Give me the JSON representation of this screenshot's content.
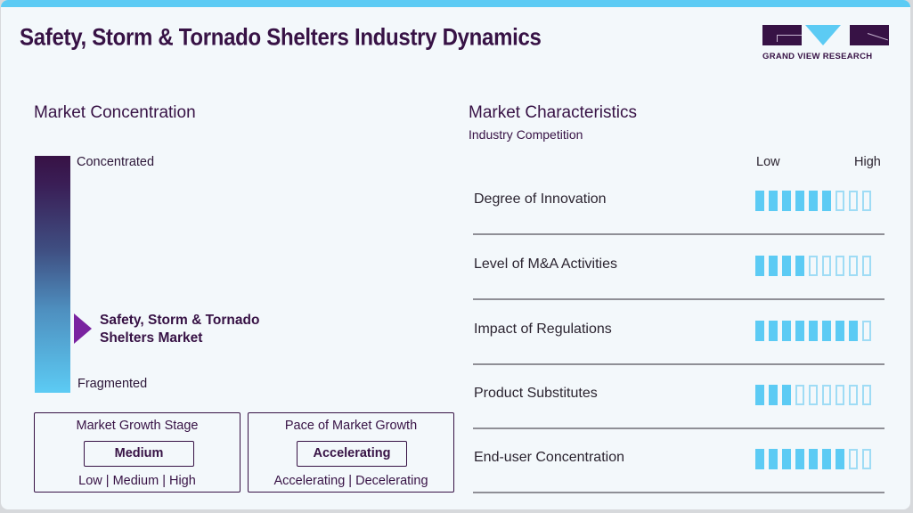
{
  "header": {
    "title": "Safety, Storm & Tornado Shelters Industry Dynamics",
    "logo_text": "GRAND VIEW RESEARCH"
  },
  "colors": {
    "accent_cyan": "#5ccbf4",
    "brand_purple": "#371245",
    "marker_purple": "#7a23a0",
    "bar_outline": "#9fdcf5"
  },
  "concentration": {
    "heading": "Market Concentration",
    "top_label": "Concentrated",
    "bottom_label": "Fragmented",
    "market_label_line1": "Safety, Storm & Tornado",
    "market_label_line2": "Shelters Market"
  },
  "growth_stage": {
    "title": "Market Growth Stage",
    "value": "Medium",
    "options": "Low  |  Medium  |  High"
  },
  "growth_pace": {
    "title": "Pace of Market Growth",
    "value": "Accelerating",
    "options": "Accelerating  |  Decelerating"
  },
  "characteristics": {
    "heading": "Market Characteristics",
    "subheading": "Industry Competition",
    "scale_low": "Low",
    "scale_high": "High",
    "max_bars": 9,
    "items": [
      {
        "label": "Degree of Innovation",
        "filled": 6
      },
      {
        "label": "Level of M&A Activities",
        "filled": 4
      },
      {
        "label": "Impact of Regulations",
        "filled": 8
      },
      {
        "label": "Product Substitutes",
        "filled": 3
      },
      {
        "label": "End-user Concentration",
        "filled": 7
      }
    ]
  }
}
